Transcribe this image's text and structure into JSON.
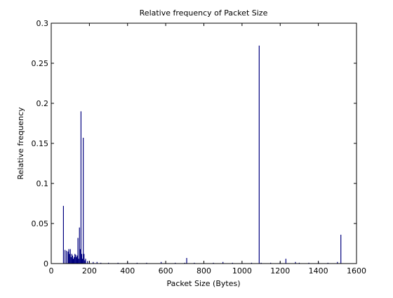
{
  "chart_data": {
    "type": "bar",
    "title": "Relative frequency of Packet Size",
    "xlabel": "Packet Size (Bytes)",
    "ylabel": "Relative frequency",
    "xlim": [
      0,
      1600
    ],
    "ylim": [
      0,
      0.3
    ],
    "xticks": [
      0,
      200,
      400,
      600,
      800,
      1000,
      1200,
      1400,
      1600
    ],
    "yticks": [
      0,
      0.05,
      0.1,
      0.15,
      0.2,
      0.25,
      0.3
    ],
    "xtick_labels": [
      "0",
      "200",
      "400",
      "600",
      "800",
      "1000",
      "1200",
      "1400",
      "1600"
    ],
    "ytick_labels": [
      "0",
      "0.05",
      "0.1",
      "0.15",
      "0.2",
      "0.25",
      "0.3"
    ],
    "grid": false,
    "color": "#00007f",
    "x": [
      64,
      72,
      80,
      88,
      92,
      96,
      100,
      104,
      108,
      112,
      116,
      120,
      124,
      128,
      132,
      136,
      140,
      144,
      148,
      152,
      156,
      160,
      164,
      168,
      172,
      176,
      180,
      190,
      200,
      220,
      240,
      260,
      300,
      350,
      400,
      450,
      500,
      576,
      600,
      650,
      700,
      710,
      750,
      800,
      850,
      900,
      950,
      1000,
      1050,
      1090,
      1100,
      1150,
      1200,
      1230,
      1280,
      1300,
      1350,
      1400,
      1450,
      1500,
      1518
    ],
    "values": [
      0.072,
      0.017,
      0.016,
      0.015,
      0.018,
      0.012,
      0.018,
      0.008,
      0.012,
      0.01,
      0.006,
      0.008,
      0.012,
      0.011,
      0.008,
      0.01,
      0.032,
      0.006,
      0.045,
      0.018,
      0.19,
      0.012,
      0.006,
      0.157,
      0.012,
      0.004,
      0.006,
      0.003,
      0.003,
      0.002,
      0.002,
      0.001,
      0.001,
      0.001,
      0.002,
      0.001,
      0.001,
      0.002,
      0.001,
      0.001,
      0.001,
      0.007,
      0.001,
      0.001,
      0.001,
      0.002,
      0.001,
      0.001,
      0.001,
      0.272,
      0.001,
      0.001,
      0.002,
      0.006,
      0.002,
      0.001,
      0.001,
      0.002,
      0.001,
      0.002,
      0.036
    ]
  }
}
